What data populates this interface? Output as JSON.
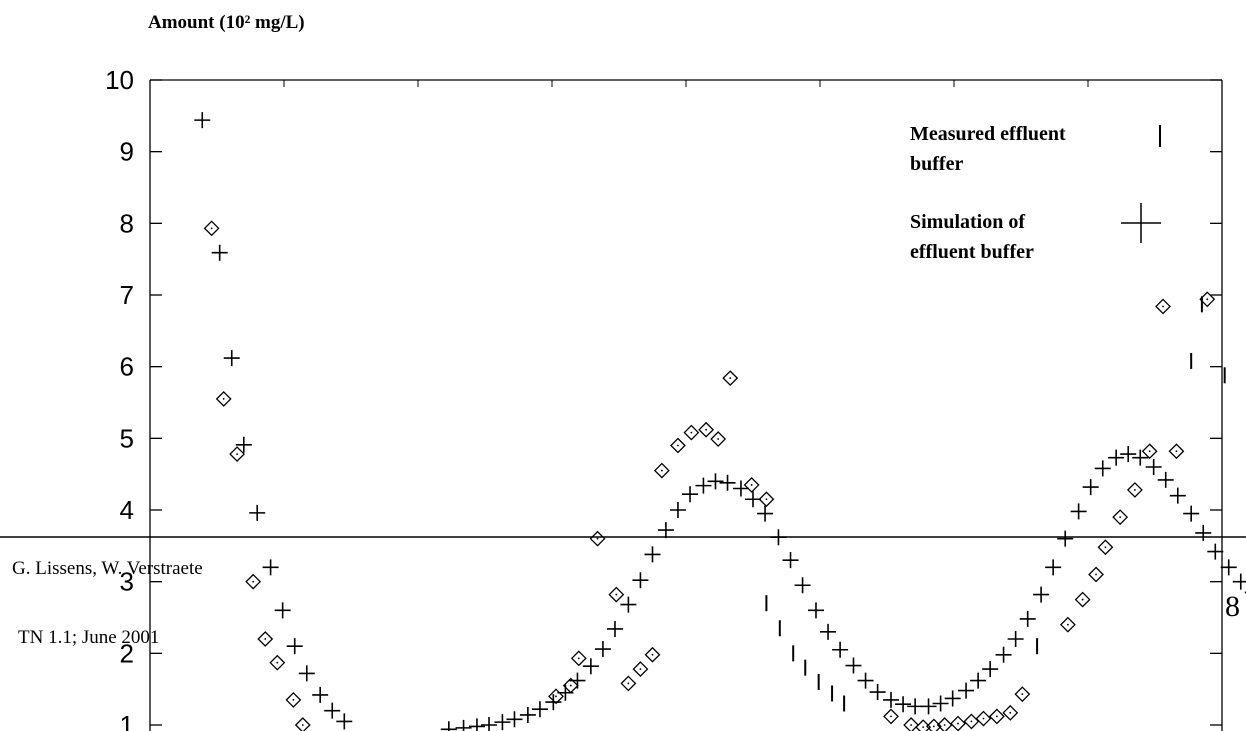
{
  "chart_data": {
    "type": "scatter",
    "title": "",
    "ylabel": "Amount (10² mg/L)",
    "xlabel": "",
    "ylim": [
      1,
      10
    ],
    "xlim": [
      0,
      8
    ],
    "y_ticks": [
      "10",
      "9",
      "8",
      "7",
      "6",
      "5",
      "4",
      "3",
      "2",
      "1"
    ],
    "grid": false,
    "legend": {
      "placement": "top-right",
      "entries": [
        {
          "label_lines": [
            "Measured effluent",
            "buffer"
          ],
          "marker": "vertical-bar"
        },
        {
          "label_lines": [
            "Simulation of",
            "effluent buffer"
          ],
          "marker": "plus"
        }
      ]
    },
    "series": [
      {
        "name": "Diamonds",
        "marker": "diamond",
        "points": [
          [
            0.46,
            7.93
          ],
          [
            0.55,
            5.55
          ],
          [
            0.65,
            4.78
          ],
          [
            0.77,
            3.0
          ],
          [
            0.86,
            2.2
          ],
          [
            0.95,
            1.87
          ],
          [
            1.07,
            1.35
          ],
          [
            1.14,
            1.0
          ],
          [
            3.03,
            1.4
          ],
          [
            3.14,
            1.55
          ],
          [
            3.2,
            1.93
          ],
          [
            3.34,
            3.6
          ],
          [
            3.48,
            2.82
          ],
          [
            3.57,
            1.58
          ],
          [
            3.66,
            1.78
          ],
          [
            3.75,
            1.98
          ],
          [
            3.82,
            4.55
          ],
          [
            3.94,
            4.9
          ],
          [
            4.04,
            5.08
          ],
          [
            4.15,
            5.12
          ],
          [
            4.24,
            4.99
          ],
          [
            4.33,
            5.84
          ],
          [
            4.49,
            4.35
          ],
          [
            4.6,
            4.15
          ],
          [
            5.53,
            1.12
          ],
          [
            5.68,
            1.0
          ],
          [
            5.77,
            0.97
          ],
          [
            5.85,
            0.98
          ],
          [
            5.93,
            1.0
          ],
          [
            6.03,
            1.02
          ],
          [
            6.13,
            1.05
          ],
          [
            6.22,
            1.09
          ],
          [
            6.32,
            1.12
          ],
          [
            6.42,
            1.17
          ],
          [
            6.51,
            1.43
          ],
          [
            6.85,
            2.4
          ],
          [
            6.96,
            2.75
          ],
          [
            7.06,
            3.1
          ],
          [
            7.13,
            3.48
          ],
          [
            7.24,
            3.9
          ],
          [
            7.35,
            4.28
          ],
          [
            7.46,
            4.82
          ],
          [
            7.56,
            6.84
          ],
          [
            7.66,
            4.82
          ],
          [
            7.89,
            6.94
          ]
        ]
      },
      {
        "name": "Measured effluent buffer",
        "marker": "vertical-bar",
        "points": [
          [
            4.6,
            2.7
          ],
          [
            4.7,
            2.35
          ],
          [
            4.8,
            2.0
          ],
          [
            4.89,
            1.8
          ],
          [
            4.99,
            1.6
          ],
          [
            5.09,
            1.44
          ],
          [
            5.18,
            1.3
          ],
          [
            6.62,
            2.1
          ],
          [
            7.77,
            6.08
          ],
          [
            7.85,
            6.87
          ],
          [
            8.02,
            5.88
          ]
        ]
      },
      {
        "name": "Simulation of effluent buffer",
        "marker": "plus",
        "points": [
          [
            0.39,
            9.44
          ],
          [
            0.52,
            7.59
          ],
          [
            0.61,
            6.12
          ],
          [
            0.7,
            4.91
          ],
          [
            0.8,
            3.96
          ],
          [
            0.9,
            3.2
          ],
          [
            0.99,
            2.6
          ],
          [
            1.08,
            2.1
          ],
          [
            1.17,
            1.72
          ],
          [
            1.27,
            1.42
          ],
          [
            1.36,
            1.2
          ],
          [
            1.45,
            1.05
          ],
          [
            2.23,
            0.94
          ],
          [
            2.34,
            0.96
          ],
          [
            2.44,
            0.98
          ],
          [
            2.53,
            1.0
          ],
          [
            2.63,
            1.04
          ],
          [
            2.72,
            1.08
          ],
          [
            2.82,
            1.14
          ],
          [
            2.91,
            1.22
          ],
          [
            3.01,
            1.32
          ],
          [
            3.1,
            1.45
          ],
          [
            3.19,
            1.62
          ],
          [
            3.29,
            1.82
          ],
          [
            3.38,
            2.06
          ],
          [
            3.47,
            2.34
          ],
          [
            3.57,
            2.68
          ],
          [
            3.66,
            3.02
          ],
          [
            3.75,
            3.38
          ],
          [
            3.85,
            3.72
          ],
          [
            3.94,
            4.0
          ],
          [
            4.03,
            4.22
          ],
          [
            4.13,
            4.34
          ],
          [
            4.22,
            4.4
          ],
          [
            4.31,
            4.38
          ],
          [
            4.41,
            4.3
          ],
          [
            4.5,
            4.15
          ],
          [
            4.59,
            3.95
          ],
          [
            4.69,
            3.62
          ],
          [
            4.78,
            3.3
          ],
          [
            4.87,
            2.95
          ],
          [
            4.97,
            2.6
          ],
          [
            5.06,
            2.3
          ],
          [
            5.15,
            2.05
          ],
          [
            5.25,
            1.83
          ],
          [
            5.34,
            1.62
          ],
          [
            5.43,
            1.46
          ],
          [
            5.53,
            1.35
          ],
          [
            5.62,
            1.29
          ],
          [
            5.71,
            1.26
          ],
          [
            5.81,
            1.26
          ],
          [
            5.9,
            1.3
          ],
          [
            5.99,
            1.37
          ],
          [
            6.09,
            1.48
          ],
          [
            6.18,
            1.62
          ],
          [
            6.27,
            1.78
          ],
          [
            6.37,
            1.98
          ],
          [
            6.46,
            2.2
          ],
          [
            6.55,
            2.48
          ],
          [
            6.65,
            2.82
          ],
          [
            6.74,
            3.2
          ],
          [
            6.83,
            3.6
          ],
          [
            6.93,
            3.98
          ],
          [
            7.02,
            4.32
          ],
          [
            7.11,
            4.58
          ],
          [
            7.21,
            4.73
          ],
          [
            7.3,
            4.78
          ],
          [
            7.39,
            4.73
          ],
          [
            7.49,
            4.6
          ],
          [
            7.58,
            4.42
          ],
          [
            7.67,
            4.2
          ],
          [
            7.77,
            3.95
          ],
          [
            7.86,
            3.68
          ],
          [
            7.95,
            3.42
          ],
          [
            8.05,
            3.2
          ],
          [
            8.14,
            3.0
          ],
          [
            8.23,
            2.85
          ],
          [
            8.33,
            2.72
          ]
        ]
      }
    ]
  },
  "footer": {
    "authors": "G. Lissens, W. Verstraete",
    "note": "TN 1.1; June 2001",
    "page_number": "8"
  }
}
